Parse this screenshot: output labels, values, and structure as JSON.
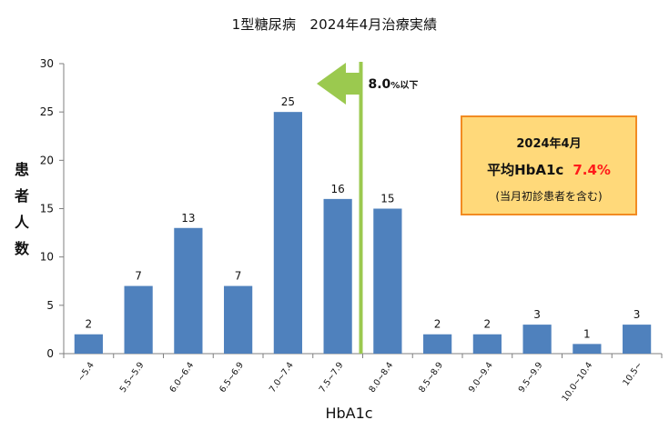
{
  "chart_data": {
    "type": "bar",
    "title": "1型糖尿病　2024年4月治療実績",
    "xlabel": "HbA1c",
    "ylabel": "患者人数",
    "ylabel_chars": [
      "患",
      "者",
      "人",
      "数"
    ],
    "ylim": [
      0,
      30
    ],
    "yticks": [
      0,
      5,
      10,
      15,
      20,
      25,
      30
    ],
    "grid": false,
    "legend": "none",
    "bar_color": "#4f81bd",
    "categories": [
      "~5.4",
      "5.5~5.9",
      "6.0~6.4",
      "6.5~6.9",
      "7.0~7.4",
      "7.5~7.9",
      "8.0~8.4",
      "8.5~8.9",
      "9.0~9.4",
      "9.5~9.9",
      "10.0~10.4",
      "10.5~"
    ],
    "values": [
      2,
      7,
      13,
      7,
      25,
      16,
      15,
      2,
      2,
      3,
      1,
      3
    ],
    "annotations": {
      "threshold": {
        "x_category_index": 6,
        "position": "left edge of category",
        "color": "#9bc94f",
        "label_value": "8.0",
        "label_suffix": "%以下",
        "arrow_direction": "left"
      },
      "info_box": {
        "line1": "2024年4月",
        "line2_label": "平均HbA1c",
        "line2_value": "7.4%",
        "line3": "(当月初診患者を含む)",
        "fill_color": "#ffd97a",
        "border_color": "#f28b22",
        "value_color": "#ff1a1a"
      }
    }
  }
}
